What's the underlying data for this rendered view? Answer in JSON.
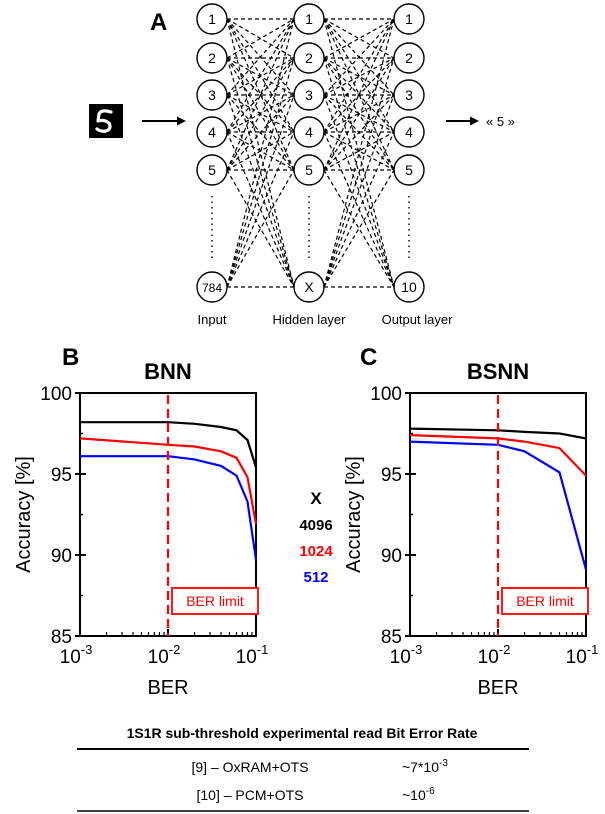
{
  "panel_labels": [
    "A",
    "B",
    "C"
  ],
  "network": {
    "input_label": "Input",
    "hidden_label": "Hidden layer",
    "output_label": "Output layer",
    "input_nodes": [
      "1",
      "2",
      "3",
      "4",
      "5",
      "784"
    ],
    "hidden_nodes": [
      "1",
      "2",
      "3",
      "4",
      "5",
      "X"
    ],
    "output_nodes": [
      "1",
      "2",
      "3",
      "4",
      "5",
      "10"
    ],
    "digit_image": "handwritten-digit-5",
    "output_text": "« 5 »"
  },
  "legend": {
    "title": "X",
    "entries": [
      {
        "label": "4096",
        "color": "#000000"
      },
      {
        "label": "1024",
        "color": "#ff0000"
      },
      {
        "label": "512",
        "color": "#0000ff"
      }
    ]
  },
  "chart_data": [
    {
      "type": "line",
      "title": "BNN",
      "xlabel": "BER",
      "ylabel": "Accuracy [%]",
      "xscale": "log",
      "xlim": [
        0.001,
        0.1
      ],
      "ylim": [
        85,
        100
      ],
      "xticks": [
        "10-3",
        "10-2",
        "10-1"
      ],
      "yticks": [
        85,
        90,
        95,
        100
      ],
      "vline": {
        "x": 0.01,
        "color": "#ff0000",
        "style": "dashed"
      },
      "annotation": "BER limit",
      "series": [
        {
          "name": "4096",
          "color": "#000000",
          "x": [
            0.001,
            0.01,
            0.02,
            0.04,
            0.06,
            0.08,
            0.1
          ],
          "y": [
            98.2,
            98.2,
            98.1,
            97.9,
            97.7,
            97.1,
            95.4
          ]
        },
        {
          "name": "1024",
          "color": "#ff0000",
          "x": [
            0.001,
            0.01,
            0.02,
            0.04,
            0.06,
            0.08,
            0.1
          ],
          "y": [
            97.2,
            96.8,
            96.7,
            96.4,
            96.0,
            94.8,
            91.9
          ]
        },
        {
          "name": "512",
          "color": "#0000ff",
          "x": [
            0.001,
            0.01,
            0.02,
            0.04,
            0.06,
            0.08,
            0.1
          ],
          "y": [
            96.1,
            96.1,
            95.9,
            95.5,
            94.9,
            93.3,
            89.7
          ]
        }
      ]
    },
    {
      "type": "line",
      "title": "BSNN",
      "xlabel": "BER",
      "ylabel": "Accuracy [%]",
      "xscale": "log",
      "xlim": [
        0.001,
        0.1
      ],
      "ylim": [
        85,
        100
      ],
      "xticks": [
        "10-3",
        "10-2",
        "10-1"
      ],
      "yticks": [
        85,
        90,
        95,
        100
      ],
      "vline": {
        "x": 0.01,
        "color": "#ff0000",
        "style": "dashed"
      },
      "annotation": "BER limit",
      "series": [
        {
          "name": "4096",
          "color": "#000000",
          "x": [
            0.001,
            0.01,
            0.02,
            0.05,
            0.1
          ],
          "y": [
            97.8,
            97.7,
            97.6,
            97.5,
            97.2
          ]
        },
        {
          "name": "1024",
          "color": "#ff0000",
          "x": [
            0.001,
            0.01,
            0.02,
            0.05,
            0.1
          ],
          "y": [
            97.4,
            97.2,
            97.0,
            96.6,
            94.9
          ]
        },
        {
          "name": "512",
          "color": "#0000ff",
          "x": [
            0.001,
            0.01,
            0.02,
            0.05,
            0.1
          ],
          "y": [
            97.0,
            96.8,
            96.4,
            95.1,
            89.1
          ]
        }
      ]
    }
  ],
  "table": {
    "header": "1S1R sub-threshold experimental read Bit Error Rate",
    "rows": [
      {
        "device": "[9] – OxRAM+OTS",
        "value": "~7*10",
        "exp": "-3"
      },
      {
        "device": "[10] – PCM+OTS",
        "value": "~10",
        "exp": "-6"
      }
    ]
  }
}
